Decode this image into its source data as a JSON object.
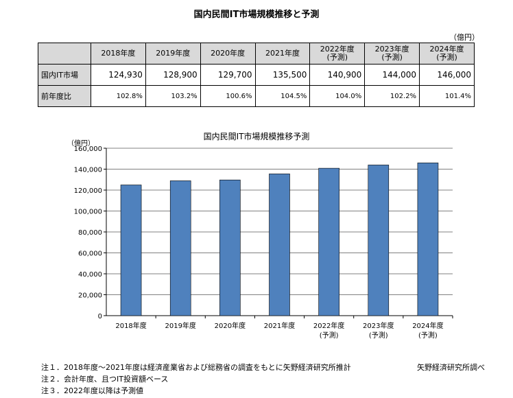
{
  "title": "国内民間IT市場規模推移と予測",
  "table": {
    "unit": "（億円）",
    "headers": [
      {
        "line1": "2018年度",
        "line2": ""
      },
      {
        "line1": "2019年度",
        "line2": ""
      },
      {
        "line1": "2020年度",
        "line2": ""
      },
      {
        "line1": "2021年度",
        "line2": ""
      },
      {
        "line1": "2022年度",
        "line2": "(予測)"
      },
      {
        "line1": "2023年度",
        "line2": "(予測)"
      },
      {
        "line1": "2024年度",
        "line2": "(予測)"
      }
    ],
    "rows": [
      {
        "label": "国内IT市場",
        "values": [
          "124,930",
          "128,900",
          "129,700",
          "135,500",
          "140,900",
          "144,000",
          "146,000"
        ]
      },
      {
        "label": "前年度比",
        "values": [
          "102.8%",
          "103.2%",
          "100.6%",
          "104.5%",
          "104.0%",
          "102.2%",
          "101.4%"
        ]
      }
    ]
  },
  "chart_data": {
    "type": "bar",
    "title": "国内民間IT市場規模推移予測",
    "ylabel": "（億円）",
    "categories": [
      [
        "2018年度",
        ""
      ],
      [
        "2019年度",
        ""
      ],
      [
        "2020年度",
        ""
      ],
      [
        "2021年度",
        ""
      ],
      [
        "2022年度",
        "(予測)"
      ],
      [
        "2023年度",
        "(予測)"
      ],
      [
        "2024年度",
        "(予測)"
      ]
    ],
    "values": [
      124930,
      128900,
      129700,
      135500,
      140900,
      144000,
      146000
    ],
    "ylim": [
      0,
      160000
    ],
    "yticks": [
      "0",
      "20,000",
      "40,000",
      "60,000",
      "80,000",
      "100,000",
      "120,000",
      "140,000",
      "160,000"
    ],
    "grid": true,
    "bar_color": "#4f81bd"
  },
  "notes": [
    "注１．2018年度～2021年度は経済産業省および総務省の調査をもとに矢野経済研究所推計",
    "注２．会計年度、且つIT投資額ベース",
    "注３．2022年度以降は予測値"
  ],
  "credit": "矢野経済研究所調べ"
}
